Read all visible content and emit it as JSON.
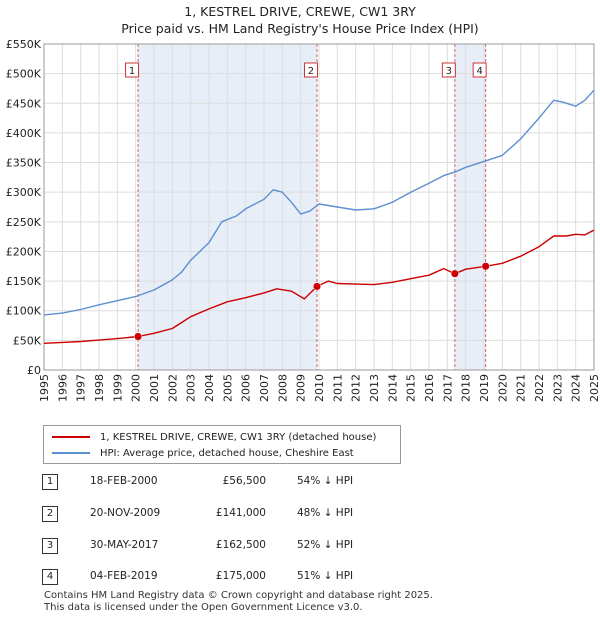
{
  "title_line1": "1, KESTREL DRIVE, CREWE, CW1 3RY",
  "title_line2": "Price paid vs. HM Land Registry's House Price Index (HPI)",
  "colors": {
    "price": "#cc0000",
    "hpi": "#5b8fd0",
    "shade": "#e8eef8",
    "grid": "#dddddd",
    "marker_line": "#cc6666"
  },
  "chart_data": {
    "type": "line",
    "title": "Price paid vs. HM Land Registry's House Price Index (HPI)",
    "xlim": [
      1995,
      2025
    ],
    "ylim": [
      0,
      550000
    ],
    "x_ticks": [
      1995,
      1996,
      1997,
      1998,
      1999,
      2000,
      2001,
      2002,
      2003,
      2004,
      2005,
      2006,
      2007,
      2008,
      2009,
      2010,
      2011,
      2012,
      2013,
      2014,
      2015,
      2016,
      2017,
      2018,
      2019,
      2020,
      2021,
      2022,
      2023,
      2024,
      2025
    ],
    "y_ticks": [
      {
        "value": 0,
        "label": "£0"
      },
      {
        "value": 50000,
        "label": "£50K"
      },
      {
        "value": 100000,
        "label": "£100K"
      },
      {
        "value": 150000,
        "label": "£150K"
      },
      {
        "value": 200000,
        "label": "£200K"
      },
      {
        "value": 250000,
        "label": "£250K"
      },
      {
        "value": 300000,
        "label": "£300K"
      },
      {
        "value": 350000,
        "label": "£350K"
      },
      {
        "value": 400000,
        "label": "£400K"
      },
      {
        "value": 450000,
        "label": "£450K"
      },
      {
        "value": 500000,
        "label": "£500K"
      },
      {
        "value": 550000,
        "label": "£550K"
      }
    ],
    "series": [
      {
        "name": "1, KESTREL DRIVE, CREWE, CW1 3RY (detached house)",
        "color": "#cc0000",
        "points": [
          [
            1995.0,
            45000
          ],
          [
            1996.0,
            46500
          ],
          [
            1997.0,
            48000
          ],
          [
            1998.0,
            50500
          ],
          [
            1999.0,
            53000
          ],
          [
            2000.13,
            56500
          ],
          [
            2001.0,
            62000
          ],
          [
            2002.0,
            70000
          ],
          [
            2002.5,
            80000
          ],
          [
            2003.0,
            90000
          ],
          [
            2004.0,
            103000
          ],
          [
            2005.0,
            115000
          ],
          [
            2006.0,
            122000
          ],
          [
            2007.0,
            130000
          ],
          [
            2007.7,
            137000
          ],
          [
            2008.5,
            133000
          ],
          [
            2009.2,
            120000
          ],
          [
            2009.89,
            141000
          ],
          [
            2010.5,
            150000
          ],
          [
            2011.0,
            146000
          ],
          [
            2012.0,
            145000
          ],
          [
            2013.0,
            144000
          ],
          [
            2014.0,
            148000
          ],
          [
            2015.0,
            154000
          ],
          [
            2016.0,
            160000
          ],
          [
            2016.8,
            171000
          ],
          [
            2017.41,
            162500
          ],
          [
            2018.0,
            170000
          ],
          [
            2019.09,
            175000
          ],
          [
            2020.0,
            180000
          ],
          [
            2021.0,
            192000
          ],
          [
            2022.0,
            208000
          ],
          [
            2022.8,
            226000
          ],
          [
            2023.5,
            226000
          ],
          [
            2024.0,
            229000
          ],
          [
            2024.5,
            228000
          ],
          [
            2025.0,
            236000
          ]
        ]
      },
      {
        "name": "HPI: Average price, detached house, Cheshire East",
        "color": "#5b8fd0",
        "points": [
          [
            1995.0,
            93000
          ],
          [
            1996.0,
            96000
          ],
          [
            1997.0,
            102000
          ],
          [
            1998.0,
            110000
          ],
          [
            1999.0,
            117000
          ],
          [
            2000.0,
            124000
          ],
          [
            2001.0,
            135000
          ],
          [
            2002.0,
            152000
          ],
          [
            2002.5,
            165000
          ],
          [
            2003.0,
            185000
          ],
          [
            2004.0,
            215000
          ],
          [
            2004.7,
            250000
          ],
          [
            2005.5,
            260000
          ],
          [
            2006.0,
            272000
          ],
          [
            2007.0,
            288000
          ],
          [
            2007.5,
            304000
          ],
          [
            2008.0,
            300000
          ],
          [
            2008.5,
            283000
          ],
          [
            2009.0,
            263000
          ],
          [
            2009.5,
            268000
          ],
          [
            2010.0,
            280000
          ],
          [
            2011.0,
            275000
          ],
          [
            2012.0,
            270000
          ],
          [
            2013.0,
            272000
          ],
          [
            2014.0,
            283000
          ],
          [
            2015.0,
            300000
          ],
          [
            2016.0,
            315000
          ],
          [
            2016.8,
            328000
          ],
          [
            2017.5,
            335000
          ],
          [
            2018.0,
            342000
          ],
          [
            2019.0,
            352000
          ],
          [
            2020.0,
            362000
          ],
          [
            2021.0,
            390000
          ],
          [
            2022.0,
            425000
          ],
          [
            2022.8,
            455000
          ],
          [
            2023.3,
            452000
          ],
          [
            2024.0,
            445000
          ],
          [
            2024.5,
            455000
          ],
          [
            2025.0,
            472000
          ]
        ]
      }
    ],
    "transactions": [
      {
        "id": "1",
        "x": 2000.13,
        "price": 56500
      },
      {
        "id": "2",
        "x": 2009.89,
        "price": 141000
      },
      {
        "id": "3",
        "x": 2017.41,
        "price": 162500
      },
      {
        "id": "4",
        "x": 2019.09,
        "price": 175000
      }
    ],
    "shaded_ranges": [
      [
        2000.13,
        2009.89
      ],
      [
        2017.41,
        2019.09
      ]
    ]
  },
  "legend": {
    "price_label": "1, KESTREL DRIVE, CREWE, CW1 3RY (detached house)",
    "hpi_label": "HPI: Average price, detached house, Cheshire East"
  },
  "table": [
    {
      "num": "1",
      "date": "18-FEB-2000",
      "price": "£56,500",
      "hpi": "54% ↓ HPI"
    },
    {
      "num": "2",
      "date": "20-NOV-2009",
      "price": "£141,000",
      "hpi": "48% ↓ HPI"
    },
    {
      "num": "3",
      "date": "30-MAY-2017",
      "price": "£162,500",
      "hpi": "52% ↓ HPI"
    },
    {
      "num": "4",
      "date": "04-FEB-2019",
      "price": "£175,000",
      "hpi": "51% ↓ HPI"
    }
  ],
  "footer": {
    "line1": "Contains HM Land Registry data © Crown copyright and database right 2025.",
    "line2": "This data is licensed under the Open Government Licence v3.0."
  }
}
